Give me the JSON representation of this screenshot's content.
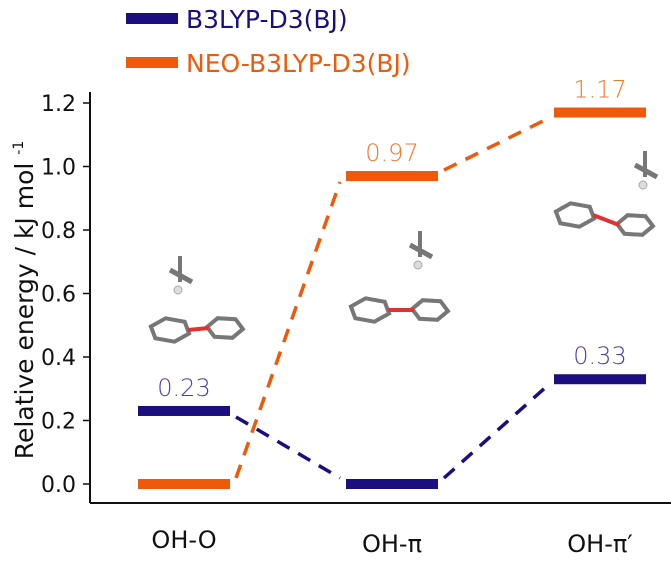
{
  "chart_data": {
    "type": "line",
    "title": "",
    "xlabel": "",
    "ylabel": "Relative energy / kJ mol",
    "ylabel_superscript": "-1",
    "ylim": [
      0,
      1.2
    ],
    "yticks": [
      "0.0",
      "0.2",
      "0.4",
      "0.6",
      "0.8",
      "1.0",
      "1.2"
    ],
    "categories": [
      "OH-O",
      "OH-π",
      "OH-π′"
    ],
    "legend_position": "top",
    "series": [
      {
        "name": "B3LYP-D3(BJ)",
        "color": "#1a0f80",
        "label_color": "#4a3fb0",
        "values": [
          0.23,
          0.0,
          0.33
        ],
        "labels": [
          "0.23",
          "",
          "0.33"
        ]
      },
      {
        "name": "NEO-B3LYP-D3(BJ)",
        "color": "#ee5a0a",
        "label_color": "#ee7a30",
        "values": [
          0.0,
          0.97,
          1.17
        ],
        "labels": [
          "",
          "0.97",
          "1.17"
        ]
      }
    ]
  }
}
